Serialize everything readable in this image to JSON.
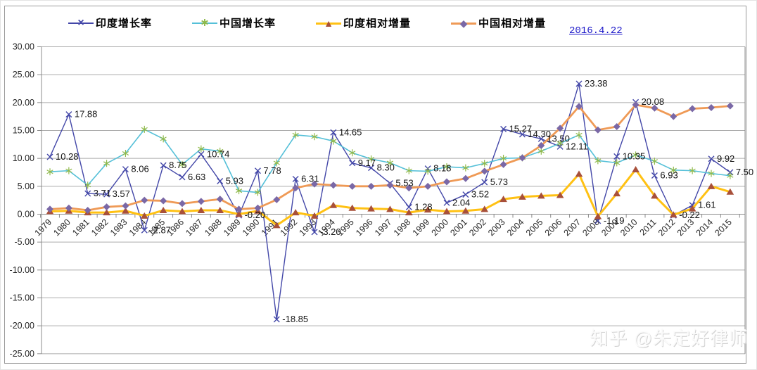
{
  "legend": {
    "items": [
      {
        "id": "india-growth-rate",
        "label": "印度增长率",
        "marker": "x-cross",
        "line_color": "#4347A8",
        "marker_color": "#4347A8"
      },
      {
        "id": "china-growth-rate",
        "label": "中国增长率",
        "marker": "asterisk",
        "line_color": "#55C0D8",
        "marker_color": "#8FB94A"
      },
      {
        "id": "india-relative-increment",
        "label": "印度相对增量",
        "marker": "triangle",
        "line_color": "#FFC113",
        "marker_color": "#A8503A"
      },
      {
        "id": "china-relative-increment",
        "label": "中国相对增量",
        "marker": "diamond",
        "line_color": "#EF9A56",
        "marker_color": "#7A68A6"
      }
    ],
    "date_label": "2016.4.22",
    "date_color": "#1a16c8"
  },
  "watermark": {
    "text": "知乎 @朱定好律师"
  },
  "axis_colors": {
    "grid": "#ABABAB",
    "axis": "#8C8C8C",
    "text": "#262626",
    "data_label": "#141414"
  },
  "chart_data": {
    "type": "line",
    "title": "",
    "xlabel": "",
    "ylabel": "",
    "ylim": [
      -25,
      30
    ],
    "ytick_step": 5,
    "grid": true,
    "legend_position": "top",
    "ytick_labels": [
      "30.00",
      "25.00",
      "20.00",
      "15.00",
      "10.00",
      "5.00",
      "0.00",
      "-5.00",
      "-10.00",
      "-15.00",
      "-20.00",
      "-25.00"
    ],
    "categories": [
      "1979",
      "1980",
      "1981",
      "1982",
      "1983",
      "1984",
      "1985",
      "1986",
      "1987",
      "1988",
      "1989",
      "1990",
      "1991",
      "1992",
      "1993",
      "1994",
      "1995",
      "1996",
      "1997",
      "1998",
      "1999",
      "2000",
      "2001",
      "2002",
      "2003",
      "2004",
      "2005",
      "2006",
      "2007",
      "2008",
      "2009",
      "2010",
      "2011",
      "2012",
      "2013",
      "2014",
      "2015"
    ],
    "series": [
      {
        "id": "india-growth-rate",
        "name": "印度增长率",
        "marker": "x-cross",
        "color": "#4347A8",
        "marker_color": "#4347A8",
        "line_width": 1.4,
        "values": [
          10.28,
          17.88,
          3.71,
          3.57,
          8.06,
          -2.87,
          8.75,
          6.63,
          10.74,
          5.93,
          -0.2,
          7.78,
          -18.85,
          6.31,
          -3.2,
          14.65,
          9.17,
          8.3,
          5.53,
          1.28,
          8.18,
          2.04,
          3.52,
          5.73,
          15.27,
          14.3,
          13.5,
          12.11,
          23.38,
          -1.19,
          10.35,
          20.08,
          6.93,
          -0.22,
          1.61,
          9.92,
          7.5
        ],
        "labels": [
          "10.28",
          "17.88",
          "3.71",
          "3.57",
          "8.06",
          "-2.87",
          "8.75",
          "6.63",
          "10.74",
          "5.93",
          "-0.20",
          "7.78",
          "-18.85",
          "6.31",
          "-3.20",
          "14.65",
          "9.17",
          "8.30",
          "5.53",
          "1.28",
          "8.18",
          "2.04",
          "3.52",
          "5.73",
          "15.27",
          "14.30",
          "13.50",
          "12.11",
          "23.38",
          "-1.19",
          "10.35",
          "20.08",
          "6.93",
          "-0.22",
          "1.61",
          "9.92",
          "7.50"
        ]
      },
      {
        "id": "china-growth-rate",
        "name": "中国增长率",
        "marker": "asterisk",
        "color": "#55C0D8",
        "marker_color": "#8FB94A",
        "line_width": 1.6,
        "values": [
          7.6,
          7.8,
          5.2,
          9.1,
          10.9,
          15.2,
          13.5,
          8.9,
          11.7,
          11.3,
          4.2,
          3.9,
          9.2,
          14.2,
          13.9,
          13.1,
          11.0,
          9.9,
          9.2,
          7.8,
          7.7,
          8.5,
          8.3,
          9.1,
          10.0,
          10.1,
          11.3,
          12.7,
          14.2,
          9.6,
          9.2,
          10.6,
          9.5,
          7.9,
          7.8,
          7.3,
          6.9
        ]
      },
      {
        "id": "india-relative-increment",
        "name": "印度相对增量",
        "marker": "triangle",
        "color": "#FFC113",
        "marker_color": "#A8503A",
        "line_width": 3,
        "values": [
          0.5,
          0.6,
          0.3,
          0.3,
          0.6,
          -0.3,
          0.7,
          0.5,
          0.7,
          0.7,
          0.0,
          0.6,
          -2.0,
          0.3,
          -0.3,
          1.6,
          1.1,
          1.0,
          0.9,
          0.3,
          0.8,
          0.5,
          0.6,
          0.9,
          2.7,
          3.1,
          3.3,
          3.4,
          7.2,
          -0.4,
          3.7,
          8.0,
          3.3,
          -0.1,
          1.0,
          5.0,
          4.0
        ]
      },
      {
        "id": "china-relative-increment",
        "name": "中国相对增量",
        "marker": "diamond",
        "color": "#EF9A56",
        "marker_color": "#7A68A6",
        "line_width": 2.8,
        "values": [
          0.9,
          1.1,
          0.7,
          1.3,
          1.5,
          2.5,
          2.4,
          1.9,
          2.3,
          2.7,
          0.9,
          1.1,
          2.6,
          4.7,
          5.4,
          5.2,
          5.0,
          5.0,
          5.2,
          4.7,
          5.0,
          5.8,
          6.4,
          7.7,
          8.9,
          10.1,
          12.3,
          15.4,
          19.3,
          15.1,
          15.7,
          19.6,
          19.0,
          17.5,
          18.9,
          19.1,
          19.4
        ]
      }
    ]
  }
}
